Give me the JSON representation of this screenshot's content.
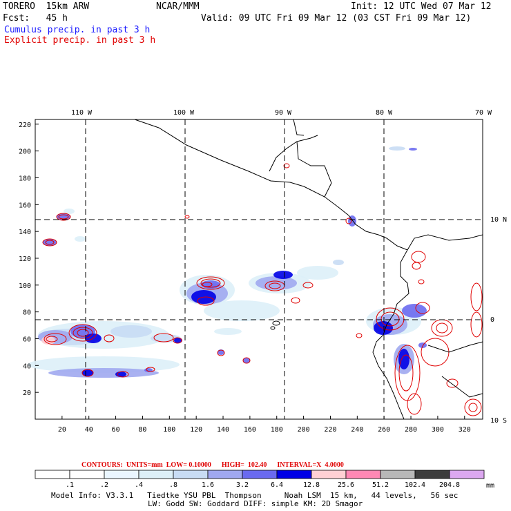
{
  "header": {
    "model": "TORERO  15km ARW",
    "org": "NCAR/MMM",
    "init": "Init: 12 UTC Wed 07 Mar 12",
    "fcst": "Fcst:   45 h",
    "valid": "Valid: 09 UTC Fri 09 Mar 12 (03 CST Fri 09 Mar 12)",
    "cumulus": "Cumulus precip. in past 3 h",
    "explicit": "Explicit precip. in past 3 h"
  },
  "map": {
    "top_lon_labels": [
      "110 W",
      "100 W",
      "90 W",
      "80 W",
      "70 W"
    ],
    "right_lat_labels": [
      "10 N",
      "0",
      "10 S"
    ],
    "y_ticks": [
      "220",
      "200",
      "180",
      "160",
      "140",
      "120",
      "100",
      "80",
      "60",
      "40",
      "20"
    ],
    "x_ticks": [
      "20",
      "40",
      "60",
      "80",
      "100",
      "120",
      "140",
      "160",
      "180",
      "200",
      "220",
      "240",
      "260",
      "280",
      "300",
      "320"
    ]
  },
  "colorbar": {
    "contours_text": "CONTOURS:  UNITS=mm  LOW= 0.10000      HIGH=  102.40      INTERVAL=X  4.0000",
    "labels": [
      ".1",
      ".2",
      ".4",
      ".8",
      "1.6",
      "3.2",
      "6.4",
      "12.8",
      "25.6",
      "51.2",
      "102.4",
      "204.8"
    ],
    "unit": "mm",
    "colors": [
      "#ffffff",
      "#ffffff",
      "#eaf6ff",
      "#ddf0f8",
      "#c8dcf4",
      "#a0a8f0",
      "#6a6af0",
      "#0000e6",
      "#ffd0d4",
      "#ff88b4",
      "#b8b8b8",
      "#3c3c3c",
      "#dca8f0"
    ]
  },
  "footer": {
    "line1": "Model Info: V3.3.1   Tiedtke YSU PBL  Thompson     Noah LSM  15 km,   44 levels,   56 sec",
    "line2": "LW: Godd SW: Goddard DIFF: simple KM: 2D Smagor"
  }
}
